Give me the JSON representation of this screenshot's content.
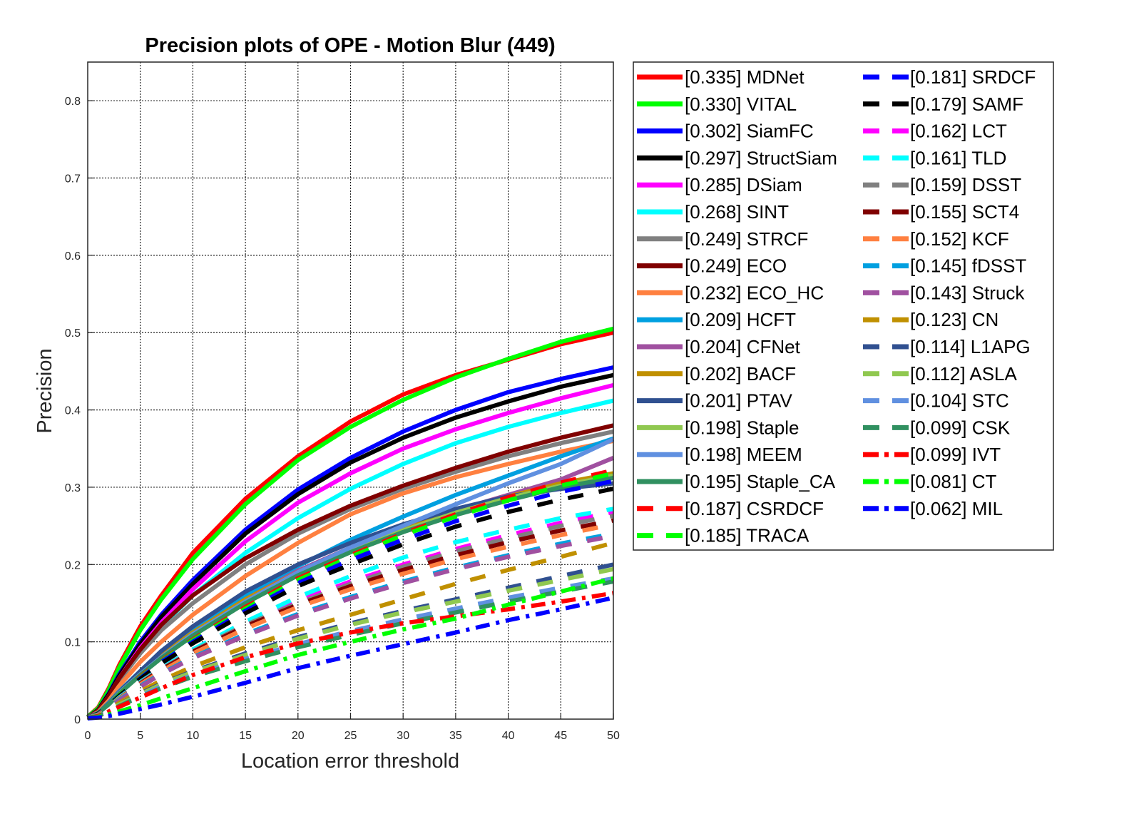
{
  "chart_data": {
    "type": "line",
    "title": "Precision plots of OPE - Motion Blur (449)",
    "xlabel": "Location error threshold",
    "ylabel": "Precision",
    "xlim": [
      0,
      50
    ],
    "ylim": [
      0,
      0.85
    ],
    "x_ticks": [
      "0",
      "5",
      "10",
      "15",
      "20",
      "25",
      "30",
      "35",
      "40",
      "45",
      "50"
    ],
    "y_ticks": [
      "0",
      "0.1",
      "0.2",
      "0.3",
      "0.4",
      "0.5",
      "0.6",
      "0.7",
      "0.8"
    ],
    "grid": true,
    "legend_position": "outside-right",
    "x": [
      0,
      1,
      2,
      3,
      5,
      7,
      10,
      15,
      20,
      25,
      30,
      35,
      40,
      45,
      50
    ],
    "series": [
      {
        "name": "[0.335] MDNet",
        "color": "#FF0000",
        "style": "solid",
        "values": [
          0.003,
          0.015,
          0.04,
          0.07,
          0.12,
          0.16,
          0.215,
          0.285,
          0.34,
          0.385,
          0.42,
          0.445,
          0.465,
          0.485,
          0.5
        ]
      },
      {
        "name": "[0.330] VITAL",
        "color": "#00FF00",
        "style": "solid",
        "values": [
          0.003,
          0.014,
          0.038,
          0.067,
          0.115,
          0.155,
          0.207,
          0.278,
          0.335,
          0.378,
          0.413,
          0.442,
          0.466,
          0.488,
          0.505
        ]
      },
      {
        "name": "[0.302] SiamFC",
        "color": "#0000FF",
        "style": "solid",
        "values": [
          0.002,
          0.012,
          0.033,
          0.058,
          0.1,
          0.135,
          0.18,
          0.245,
          0.297,
          0.338,
          0.372,
          0.4,
          0.423,
          0.44,
          0.455
        ]
      },
      {
        "name": "[0.297] StructSiam",
        "color": "#000000",
        "style": "solid",
        "values": [
          0.002,
          0.012,
          0.032,
          0.056,
          0.097,
          0.132,
          0.175,
          0.24,
          0.291,
          0.332,
          0.364,
          0.39,
          0.411,
          0.43,
          0.445
        ]
      },
      {
        "name": "[0.285] DSiam",
        "color": "#FF00FF",
        "style": "solid",
        "values": [
          0.002,
          0.011,
          0.03,
          0.053,
          0.092,
          0.125,
          0.168,
          0.23,
          0.28,
          0.318,
          0.35,
          0.375,
          0.396,
          0.415,
          0.432
        ]
      },
      {
        "name": "[0.268] SINT",
        "color": "#00FFFF",
        "style": "solid",
        "values": [
          0.002,
          0.011,
          0.029,
          0.051,
          0.088,
          0.12,
          0.16,
          0.215,
          0.26,
          0.298,
          0.33,
          0.357,
          0.378,
          0.396,
          0.412
        ]
      },
      {
        "name": "[0.249] STRCF",
        "color": "#808080",
        "style": "solid",
        "values": [
          0.002,
          0.01,
          0.028,
          0.05,
          0.085,
          0.115,
          0.15,
          0.2,
          0.24,
          0.272,
          0.298,
          0.32,
          0.34,
          0.357,
          0.372
        ]
      },
      {
        "name": "[0.249] ECO",
        "color": "#800000",
        "style": "solid",
        "values": [
          0.002,
          0.011,
          0.03,
          0.053,
          0.09,
          0.122,
          0.16,
          0.208,
          0.245,
          0.276,
          0.302,
          0.325,
          0.346,
          0.364,
          0.38
        ]
      },
      {
        "name": "[0.232] ECO_HC",
        "color": "#FF8040",
        "style": "solid",
        "values": [
          0.002,
          0.009,
          0.024,
          0.043,
          0.074,
          0.1,
          0.135,
          0.185,
          0.228,
          0.265,
          0.292,
          0.313,
          0.33,
          0.346,
          0.36
        ]
      },
      {
        "name": "[0.209] HCFT",
        "color": "#00A0E0",
        "style": "solid",
        "values": [
          0.002,
          0.008,
          0.021,
          0.036,
          0.062,
          0.085,
          0.115,
          0.16,
          0.198,
          0.232,
          0.262,
          0.29,
          0.315,
          0.34,
          0.363
        ]
      },
      {
        "name": "[0.204] CFNet",
        "color": "#A050A0",
        "style": "solid",
        "values": [
          0.002,
          0.008,
          0.02,
          0.035,
          0.06,
          0.083,
          0.112,
          0.155,
          0.192,
          0.222,
          0.248,
          0.27,
          0.29,
          0.31,
          0.338
        ]
      },
      {
        "name": "[0.202] BACF",
        "color": "#C09000",
        "style": "solid",
        "values": [
          0.002,
          0.008,
          0.02,
          0.035,
          0.06,
          0.083,
          0.112,
          0.155,
          0.19,
          0.22,
          0.246,
          0.268,
          0.288,
          0.305,
          0.318
        ]
      },
      {
        "name": "[0.201] PTAV",
        "color": "#305090",
        "style": "solid",
        "values": [
          0.002,
          0.008,
          0.02,
          0.035,
          0.062,
          0.088,
          0.12,
          0.165,
          0.2,
          0.228,
          0.252,
          0.272,
          0.288,
          0.298,
          0.305
        ]
      },
      {
        "name": "[0.198] Staple",
        "color": "#90C850",
        "style": "solid",
        "values": [
          0.002,
          0.008,
          0.019,
          0.034,
          0.058,
          0.08,
          0.11,
          0.152,
          0.188,
          0.218,
          0.244,
          0.267,
          0.286,
          0.302,
          0.315
        ]
      },
      {
        "name": "[0.198] MEEM",
        "color": "#6090E0",
        "style": "solid",
        "values": [
          0.002,
          0.008,
          0.019,
          0.034,
          0.058,
          0.08,
          0.11,
          0.152,
          0.19,
          0.222,
          0.25,
          0.278,
          0.305,
          0.33,
          0.362
        ]
      },
      {
        "name": "[0.195] Staple_CA",
        "color": "#309060",
        "style": "solid",
        "values": [
          0.002,
          0.008,
          0.019,
          0.033,
          0.057,
          0.079,
          0.108,
          0.15,
          0.186,
          0.216,
          0.242,
          0.264,
          0.283,
          0.3,
          0.312
        ]
      },
      {
        "name": "[0.187] CSRDCF",
        "color": "#FF0000",
        "style": "dashed",
        "values": [
          0.002,
          0.007,
          0.018,
          0.031,
          0.055,
          0.076,
          0.103,
          0.145,
          0.182,
          0.212,
          0.24,
          0.265,
          0.287,
          0.306,
          0.322
        ]
      },
      {
        "name": "[0.185] TRACA",
        "color": "#00FF00",
        "style": "dashed",
        "values": [
          0.002,
          0.007,
          0.018,
          0.031,
          0.054,
          0.075,
          0.102,
          0.143,
          0.18,
          0.21,
          0.238,
          0.262,
          0.283,
          0.302,
          0.318
        ]
      },
      {
        "name": "[0.181] SRDCF",
        "color": "#0000FF",
        "style": "dashed",
        "values": [
          0.002,
          0.007,
          0.018,
          0.03,
          0.053,
          0.074,
          0.1,
          0.14,
          0.176,
          0.206,
          0.232,
          0.256,
          0.276,
          0.294,
          0.308
        ]
      },
      {
        "name": "[0.179] SAMF",
        "color": "#000000",
        "style": "dashed",
        "values": [
          0.002,
          0.007,
          0.017,
          0.03,
          0.052,
          0.072,
          0.098,
          0.137,
          0.172,
          0.2,
          0.226,
          0.249,
          0.268,
          0.284,
          0.298
        ]
      },
      {
        "name": "[0.162] LCT",
        "color": "#FF00FF",
        "style": "dashed",
        "values": [
          0.002,
          0.006,
          0.016,
          0.028,
          0.048,
          0.066,
          0.09,
          0.124,
          0.153,
          0.178,
          0.2,
          0.22,
          0.238,
          0.254,
          0.268
        ]
      },
      {
        "name": "[0.161] TLD",
        "color": "#00FFFF",
        "style": "dashed",
        "values": [
          0.002,
          0.006,
          0.016,
          0.028,
          0.048,
          0.066,
          0.09,
          0.126,
          0.158,
          0.185,
          0.209,
          0.229,
          0.245,
          0.26,
          0.272
        ]
      },
      {
        "name": "[0.159] DSST",
        "color": "#808080",
        "style": "dashed",
        "values": [
          0.002,
          0.006,
          0.016,
          0.027,
          0.047,
          0.065,
          0.088,
          0.122,
          0.15,
          0.175,
          0.197,
          0.217,
          0.234,
          0.25,
          0.263
        ]
      },
      {
        "name": "[0.155] SCT4",
        "color": "#800000",
        "style": "dashed",
        "values": [
          0.002,
          0.006,
          0.015,
          0.026,
          0.046,
          0.064,
          0.087,
          0.12,
          0.148,
          0.172,
          0.193,
          0.212,
          0.229,
          0.244,
          0.257
        ]
      },
      {
        "name": "[0.152] KCF",
        "color": "#FF8040",
        "style": "dashed",
        "values": [
          0.002,
          0.006,
          0.015,
          0.026,
          0.045,
          0.062,
          0.085,
          0.117,
          0.145,
          0.168,
          0.188,
          0.207,
          0.223,
          0.238,
          0.252
        ]
      },
      {
        "name": "[0.145] fDSST",
        "color": "#00A0E0",
        "style": "dashed",
        "values": [
          0.002,
          0.006,
          0.014,
          0.025,
          0.043,
          0.059,
          0.08,
          0.11,
          0.136,
          0.158,
          0.178,
          0.196,
          0.212,
          0.227,
          0.24
        ]
      },
      {
        "name": "[0.143] Struck",
        "color": "#A050A0",
        "style": "dashed",
        "values": [
          0.002,
          0.006,
          0.014,
          0.024,
          0.042,
          0.058,
          0.079,
          0.108,
          0.134,
          0.156,
          0.176,
          0.194,
          0.21,
          0.224,
          0.237
        ]
      },
      {
        "name": "[0.123] CN",
        "color": "#C09000",
        "style": "dashed",
        "values": [
          0.002,
          0.005,
          0.012,
          0.021,
          0.036,
          0.05,
          0.068,
          0.093,
          0.115,
          0.135,
          0.155,
          0.175,
          0.193,
          0.21,
          0.228
        ]
      },
      {
        "name": "[0.114] L1APG",
        "color": "#305090",
        "style": "dashed",
        "values": [
          0.002,
          0.005,
          0.011,
          0.019,
          0.033,
          0.046,
          0.062,
          0.085,
          0.106,
          0.124,
          0.14,
          0.155,
          0.17,
          0.185,
          0.2
        ]
      },
      {
        "name": "[0.112] ASLA",
        "color": "#90C850",
        "style": "dashed",
        "values": [
          0.002,
          0.005,
          0.011,
          0.019,
          0.032,
          0.045,
          0.061,
          0.083,
          0.104,
          0.122,
          0.138,
          0.152,
          0.166,
          0.18,
          0.194
        ]
      },
      {
        "name": "[0.104] STC",
        "color": "#6090E0",
        "style": "dashed",
        "values": [
          0.002,
          0.004,
          0.01,
          0.017,
          0.03,
          0.042,
          0.057,
          0.078,
          0.097,
          0.114,
          0.129,
          0.143,
          0.157,
          0.17,
          0.182
        ]
      },
      {
        "name": "[0.099] CSK",
        "color": "#309060",
        "style": "dashed",
        "values": [
          0.002,
          0.004,
          0.01,
          0.017,
          0.029,
          0.04,
          0.055,
          0.075,
          0.093,
          0.109,
          0.124,
          0.138,
          0.152,
          0.165,
          0.178
        ]
      },
      {
        "name": "[0.099] IVT",
        "color": "#FF0000",
        "style": "dashdot",
        "values": [
          0.001,
          0.004,
          0.01,
          0.016,
          0.028,
          0.04,
          0.057,
          0.08,
          0.098,
          0.112,
          0.124,
          0.133,
          0.142,
          0.152,
          0.163
        ]
      },
      {
        "name": "[0.081] CT",
        "color": "#00FF00",
        "style": "dashdot",
        "values": [
          0.001,
          0.003,
          0.006,
          0.01,
          0.018,
          0.027,
          0.04,
          0.062,
          0.083,
          0.1,
          0.116,
          0.13,
          0.148,
          0.165,
          0.182
        ]
      },
      {
        "name": "[0.062] MIL",
        "color": "#0000FF",
        "style": "dashdot",
        "values": [
          0.001,
          0.002,
          0.004,
          0.007,
          0.013,
          0.019,
          0.029,
          0.047,
          0.066,
          0.082,
          0.097,
          0.112,
          0.128,
          0.142,
          0.157
        ]
      }
    ]
  }
}
